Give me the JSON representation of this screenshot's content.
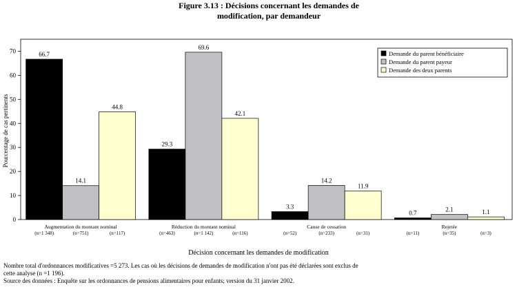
{
  "title_line1": "Figure 3.13 : Décisions concernant les demandes de",
  "title_line2": "modification, par demandeur",
  "notes": {
    "line1": "Nombre total d'ordonnances modificatives =5 273.  Les cas où les décisions de demandes de modification n'ont pas été déclarées sont exclus de",
    "line2": "cette analyse (n =1 196).",
    "line3": "Source des données : Enquête sur les ordonnances de pensions alimentaires pour enfants; version du 31 janvier 2002."
  },
  "chart_data": {
    "type": "bar",
    "xlabel": "Décision concernant les demandes de modification",
    "ylabel": "Pourcentage de cas pertinents",
    "ylim": [
      0,
      75
    ],
    "yticks": [
      0,
      10,
      20,
      30,
      40,
      50,
      60,
      70
    ],
    "grid": false,
    "legend_position": "top-right",
    "categories": [
      {
        "label": "Augmentation du montant nominal",
        "n": [
          "(n=1 348)",
          "(n=751)",
          "(n=117)"
        ]
      },
      {
        "label": "Réduction du montant nominal",
        "n": [
          "(n=463)",
          "(n=1 142)",
          "(n=116)"
        ]
      },
      {
        "label": "Cause de cessation",
        "n": [
          "(n=52)",
          "(n=233)",
          "(n=31)"
        ]
      },
      {
        "label": "Rejetée",
        "n": [
          "(n=11)",
          "(n=35)",
          "(n=3)"
        ]
      }
    ],
    "series": [
      {
        "name": "Demande du parent bénéficiaire",
        "color": "#000000",
        "values": [
          66.7,
          29.3,
          3.3,
          0.7
        ],
        "labels": [
          "66.7",
          "29.3",
          "3.3",
          "0.7"
        ]
      },
      {
        "name": "Demande du parent payeur",
        "color": "#c0c0c4",
        "values": [
          14.1,
          69.6,
          14.2,
          2.1
        ],
        "labels": [
          "14.1",
          "69.6",
          "14.2",
          "2.1"
        ]
      },
      {
        "name": "Demande des deux parents",
        "color": "#ffffd0",
        "values": [
          44.8,
          42.1,
          11.9,
          1.1
        ],
        "labels": [
          "44.8",
          "42.1",
          "11.9",
          "1.1"
        ]
      }
    ]
  }
}
